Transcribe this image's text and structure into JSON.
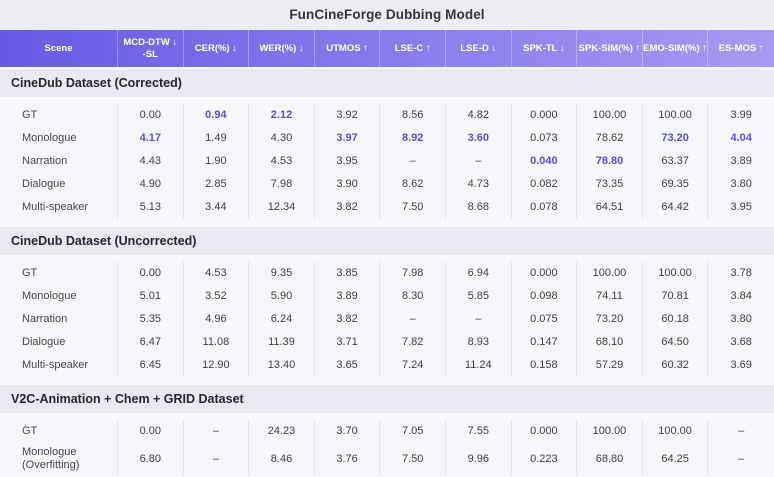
{
  "title": "FunCineForge Dubbing Model",
  "colors": {
    "header_gradient_start": "#675ae6",
    "header_gradient_end": "#a89af2",
    "highlight": "#5b4ce0",
    "section_heading_bg": "#e9eaf1",
    "rows_bg": "#f6f7fb",
    "page_bg": "#edeef4"
  },
  "chart_data": {
    "type": "table",
    "title": "FunCineForge Dubbing Model",
    "legend_position": "none",
    "columns": [
      {
        "label": "Scene",
        "sub": "",
        "arrow": ""
      },
      {
        "label": "MCD-DTW",
        "sub": "-SL",
        "arrow": "↓"
      },
      {
        "label": "CER(%)",
        "sub": "",
        "arrow": "↓"
      },
      {
        "label": "WER(%)",
        "sub": "",
        "arrow": "↓"
      },
      {
        "label": "UTMOS",
        "sub": "",
        "arrow": "↑"
      },
      {
        "label": "LSE-C",
        "sub": "",
        "arrow": "↑"
      },
      {
        "label": "LSE-D",
        "sub": "",
        "arrow": "↓"
      },
      {
        "label": "SPK-TL",
        "sub": "",
        "arrow": "↓"
      },
      {
        "label": "SPK-SIM(%)",
        "sub": "",
        "arrow": "↑"
      },
      {
        "label": "EMO-SIM(%)",
        "sub": "",
        "arrow": "↑"
      },
      {
        "label": "ES-MOS",
        "sub": "",
        "arrow": "↑"
      }
    ],
    "sections": [
      {
        "heading": "CineDub Dataset (Corrected)",
        "rows": [
          {
            "scene": "GT",
            "values": [
              "0.00",
              "0.94",
              "2.12",
              "3.92",
              "8.56",
              "4.82",
              "0.000",
              "100.00",
              "100.00",
              "3.99"
            ],
            "bold": [
              1,
              2
            ]
          },
          {
            "scene": "Monologue",
            "values": [
              "4.17",
              "1.49",
              "4.30",
              "3.97",
              "8.92",
              "3.60",
              "0.073",
              "78.62",
              "73.20",
              "4.04"
            ],
            "bold": [
              0,
              3,
              4,
              5,
              8,
              9
            ]
          },
          {
            "scene": "Narration",
            "values": [
              "4.43",
              "1.90",
              "4.53",
              "3.95",
              "–",
              "–",
              "0.040",
              "78.80",
              "63.37",
              "3.89"
            ],
            "bold": [
              6,
              7
            ]
          },
          {
            "scene": "Dialogue",
            "values": [
              "4.90",
              "2.85",
              "7.98",
              "3.90",
              "8.62",
              "4.73",
              "0.082",
              "73.35",
              "69.35",
              "3.80"
            ],
            "bold": []
          },
          {
            "scene": "Multi-speaker",
            "values": [
              "5.13",
              "3.44",
              "12.34",
              "3.82",
              "7.50",
              "8.68",
              "0.078",
              "64.51",
              "64.42",
              "3.95"
            ],
            "bold": []
          }
        ]
      },
      {
        "heading": "CineDub Dataset (Uncorrected)",
        "rows": [
          {
            "scene": "GT",
            "values": [
              "0.00",
              "4.53",
              "9.35",
              "3.85",
              "7.98",
              "6.94",
              "0.000",
              "100.00",
              "100.00",
              "3.78"
            ],
            "bold": []
          },
          {
            "scene": "Monologue",
            "values": [
              "5.01",
              "3.52",
              "5.90",
              "3.89",
              "8.30",
              "5.85",
              "0.098",
              "74.11",
              "70.81",
              "3.84"
            ],
            "bold": []
          },
          {
            "scene": "Narration",
            "values": [
              "5.35",
              "4.96",
              "6.24",
              "3.82",
              "–",
              "–",
              "0.075",
              "73.20",
              "60.18",
              "3.80"
            ],
            "bold": []
          },
          {
            "scene": "Dialogue",
            "values": [
              "6.47",
              "11.08",
              "11.39",
              "3.71",
              "7.82",
              "8.93",
              "0.147",
              "68.10",
              "64.50",
              "3.68"
            ],
            "bold": []
          },
          {
            "scene": "Multi-speaker",
            "values": [
              "6.45",
              "12.90",
              "13.40",
              "3.65",
              "7.24",
              "11.24",
              "0.158",
              "57.29",
              "60.32",
              "3.69"
            ],
            "bold": []
          }
        ]
      },
      {
        "heading": "V2C-Animation + Chem + GRID Dataset",
        "rows": [
          {
            "scene": "GT",
            "values": [
              "0.00",
              "–",
              "24.23",
              "3.70",
              "7.05",
              "7.55",
              "0.000",
              "100.00",
              "100.00",
              "–"
            ],
            "bold": []
          },
          {
            "scene": "Monologue (Overfitting)",
            "values": [
              "6.80",
              "–",
              "8.46",
              "3.76",
              "7.50",
              "9.96",
              "0.223",
              "68.80",
              "64.25",
              "–"
            ],
            "bold": []
          }
        ]
      }
    ]
  }
}
